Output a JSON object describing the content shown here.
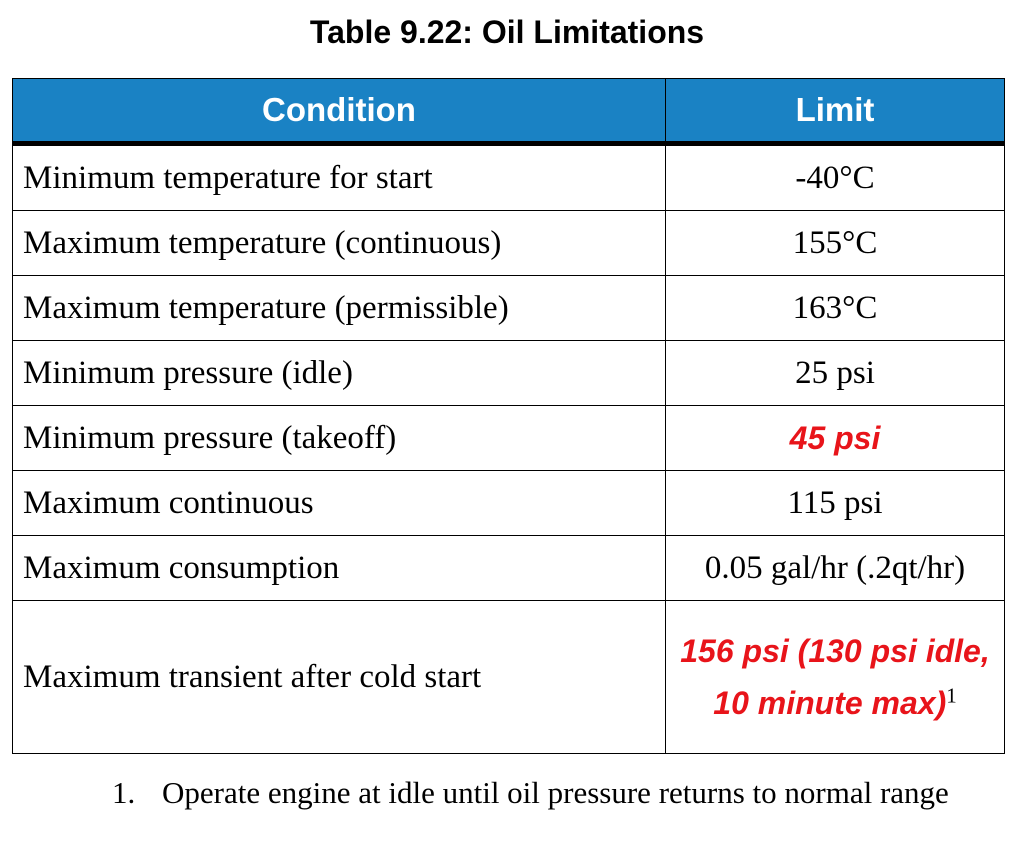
{
  "title": "Table 9.22: Oil Limitations",
  "table": {
    "headers": {
      "condition": "Condition",
      "limit": "Limit"
    },
    "rows": [
      {
        "condition": "Minimum temperature for start",
        "limit": "-40°C"
      },
      {
        "condition": "Maximum temperature (continuous)",
        "limit": "155°C"
      },
      {
        "condition": "Maximum temperature (permissible)",
        "limit": "163°C"
      },
      {
        "condition": "Minimum pressure (idle)",
        "limit": "25 psi"
      },
      {
        "condition": "Minimum pressure (takeoff)",
        "limit": "45 psi"
      },
      {
        "condition": "Maximum continuous",
        "limit": "115 psi"
      },
      {
        "condition": "Maximum consumption",
        "limit": "0.05 gal/hr (.2qt/hr)"
      },
      {
        "condition": "Maximum transient after cold start",
        "limit": "156 psi (130 psi idle, 10 minute max)",
        "footnote_ref": "1"
      }
    ]
  },
  "footnotes": [
    {
      "number": "1.",
      "text": "Operate engine at idle until oil pressure returns to normal range"
    }
  ],
  "colors": {
    "header_bg": "#1a82c4",
    "header_text": "#ffffff",
    "highlight": "#e8141a"
  }
}
